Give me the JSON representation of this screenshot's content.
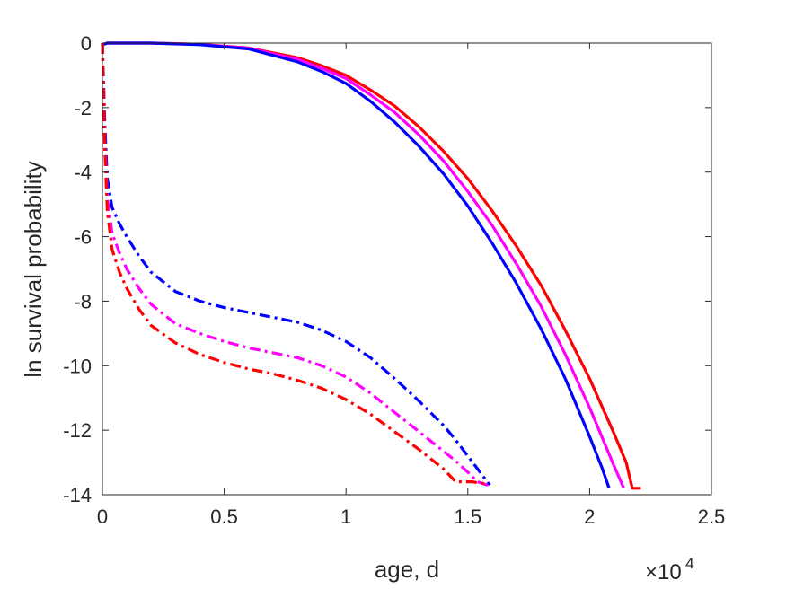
{
  "chart_data": {
    "type": "line",
    "title": "",
    "xlabel": "age, d",
    "ylabel": "ln survival probability",
    "x_multiplier_base": "×10",
    "x_multiplier_exp": "4",
    "xlim": [
      0,
      25000
    ],
    "ylim": [
      -14,
      0
    ],
    "xticks": [
      0,
      5000,
      10000,
      15000,
      20000,
      25000
    ],
    "xtick_labels": [
      "0",
      "0.5",
      "1",
      "1.5",
      "2",
      "2.5"
    ],
    "yticks": [
      0,
      -2,
      -4,
      -6,
      -8,
      -10,
      -12,
      -14
    ],
    "ytick_labels": [
      "0",
      "-2",
      "-4",
      "-6",
      "-8",
      "-10",
      "-12",
      "-14"
    ],
    "grid": false,
    "legend": "none",
    "series": [
      {
        "color": "#ff0000",
        "style": "solid",
        "x": [
          0,
          200,
          2000,
          4000,
          6000,
          8000,
          9000,
          10000,
          11000,
          12000,
          13000,
          14000,
          15000,
          16000,
          17000,
          18000,
          19000,
          20000,
          21000,
          21500,
          21750,
          21850,
          22100
        ],
        "y": [
          -0.05,
          0,
          0,
          -0.04,
          -0.15,
          -0.45,
          -0.7,
          -1.0,
          -1.45,
          -1.95,
          -2.6,
          -3.35,
          -4.2,
          -5.2,
          -6.3,
          -7.5,
          -8.9,
          -10.4,
          -12.1,
          -13.0,
          -13.8,
          -13.8,
          -13.8
        ]
      },
      {
        "color": "#ff00ff",
        "style": "solid",
        "x": [
          0,
          200,
          2000,
          4000,
          6000,
          8000,
          9000,
          10000,
          11000,
          12000,
          13000,
          14000,
          15000,
          16000,
          17000,
          18000,
          19000,
          20000,
          21000,
          21400
        ],
        "y": [
          -0.05,
          0,
          0,
          -0.04,
          -0.16,
          -0.5,
          -0.78,
          -1.1,
          -1.6,
          -2.15,
          -2.85,
          -3.65,
          -4.6,
          -5.65,
          -6.85,
          -8.15,
          -9.65,
          -11.3,
          -13.1,
          -13.8
        ]
      },
      {
        "color": "#0000ff",
        "style": "solid",
        "x": [
          0,
          200,
          2000,
          4000,
          6000,
          8000,
          9000,
          10000,
          11000,
          12000,
          13000,
          14000,
          15000,
          16000,
          17000,
          18000,
          19000,
          20000,
          20500,
          20800
        ],
        "y": [
          -0.05,
          0,
          0,
          -0.05,
          -0.18,
          -0.58,
          -0.88,
          -1.25,
          -1.8,
          -2.45,
          -3.2,
          -4.05,
          -5.05,
          -6.2,
          -7.45,
          -8.85,
          -10.4,
          -12.2,
          -13.15,
          -13.8
        ]
      },
      {
        "color": "#0000ff",
        "style": "dashdot",
        "x": [
          0,
          100,
          200,
          400,
          700,
          1000,
          1500,
          2000,
          3000,
          4000,
          5000,
          6000,
          7000,
          8000,
          9000,
          10000,
          11000,
          12000,
          13000,
          14000,
          14500,
          15000,
          15500,
          15900
        ],
        "y": [
          0,
          -2.5,
          -4.2,
          -5.1,
          -5.6,
          -6.0,
          -6.6,
          -7.1,
          -7.7,
          -8.0,
          -8.2,
          -8.35,
          -8.5,
          -8.65,
          -8.9,
          -9.25,
          -9.75,
          -10.4,
          -11.1,
          -11.85,
          -12.3,
          -12.8,
          -13.3,
          -13.7
        ]
      },
      {
        "color": "#ff00ff",
        "style": "dashdot",
        "x": [
          0,
          100,
          200,
          400,
          700,
          1000,
          1500,
          2000,
          3000,
          4000,
          5000,
          6000,
          7000,
          8000,
          9000,
          10000,
          11000,
          12000,
          13000,
          14000,
          14500,
          15000,
          15400,
          15800,
          16000
        ],
        "y": [
          0,
          -3.0,
          -4.8,
          -5.9,
          -6.5,
          -7.0,
          -7.6,
          -8.1,
          -8.7,
          -9.0,
          -9.25,
          -9.45,
          -9.6,
          -9.75,
          -10.0,
          -10.35,
          -10.85,
          -11.45,
          -12.05,
          -12.65,
          -12.95,
          -13.3,
          -13.6,
          -13.7,
          -13.7
        ]
      },
      {
        "color": "#ff0000",
        "style": "dashdot",
        "x": [
          0,
          100,
          200,
          400,
          700,
          1000,
          1500,
          2000,
          3000,
          4000,
          5000,
          6000,
          7000,
          8000,
          9000,
          10000,
          11000,
          12000,
          13000,
          14000,
          14500,
          14700,
          15200,
          15500,
          15800
        ],
        "y": [
          0,
          -3.3,
          -5.2,
          -6.4,
          -7.1,
          -7.6,
          -8.25,
          -8.75,
          -9.3,
          -9.65,
          -9.9,
          -10.1,
          -10.25,
          -10.45,
          -10.7,
          -11.05,
          -11.5,
          -12.05,
          -12.6,
          -13.2,
          -13.6,
          -13.6,
          -13.6,
          -13.65,
          -13.65
        ]
      }
    ]
  }
}
